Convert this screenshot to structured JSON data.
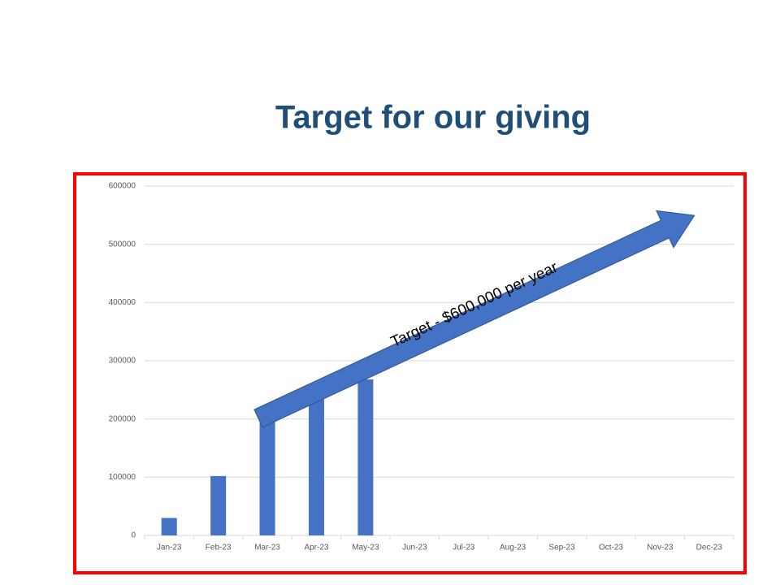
{
  "chart_data": {
    "type": "bar",
    "title": "Target for our giving",
    "categories": [
      "Jan-23",
      "Feb-23",
      "Mar-23",
      "Apr-23",
      "May-23",
      "Jun-23",
      "Jul-23",
      "Aug-23",
      "Sep-23",
      "Oct-23",
      "Nov-23",
      "Dec-23"
    ],
    "values": [
      30000,
      102000,
      195000,
      235000,
      268000,
      null,
      null,
      null,
      null,
      null,
      null,
      null
    ],
    "color": "#4472c4",
    "ylim": [
      0,
      600000
    ],
    "yticks": [
      0,
      100000,
      200000,
      300000,
      400000,
      500000,
      600000
    ],
    "grid": true,
    "annotation": "Target - $600,000 per year"
  }
}
